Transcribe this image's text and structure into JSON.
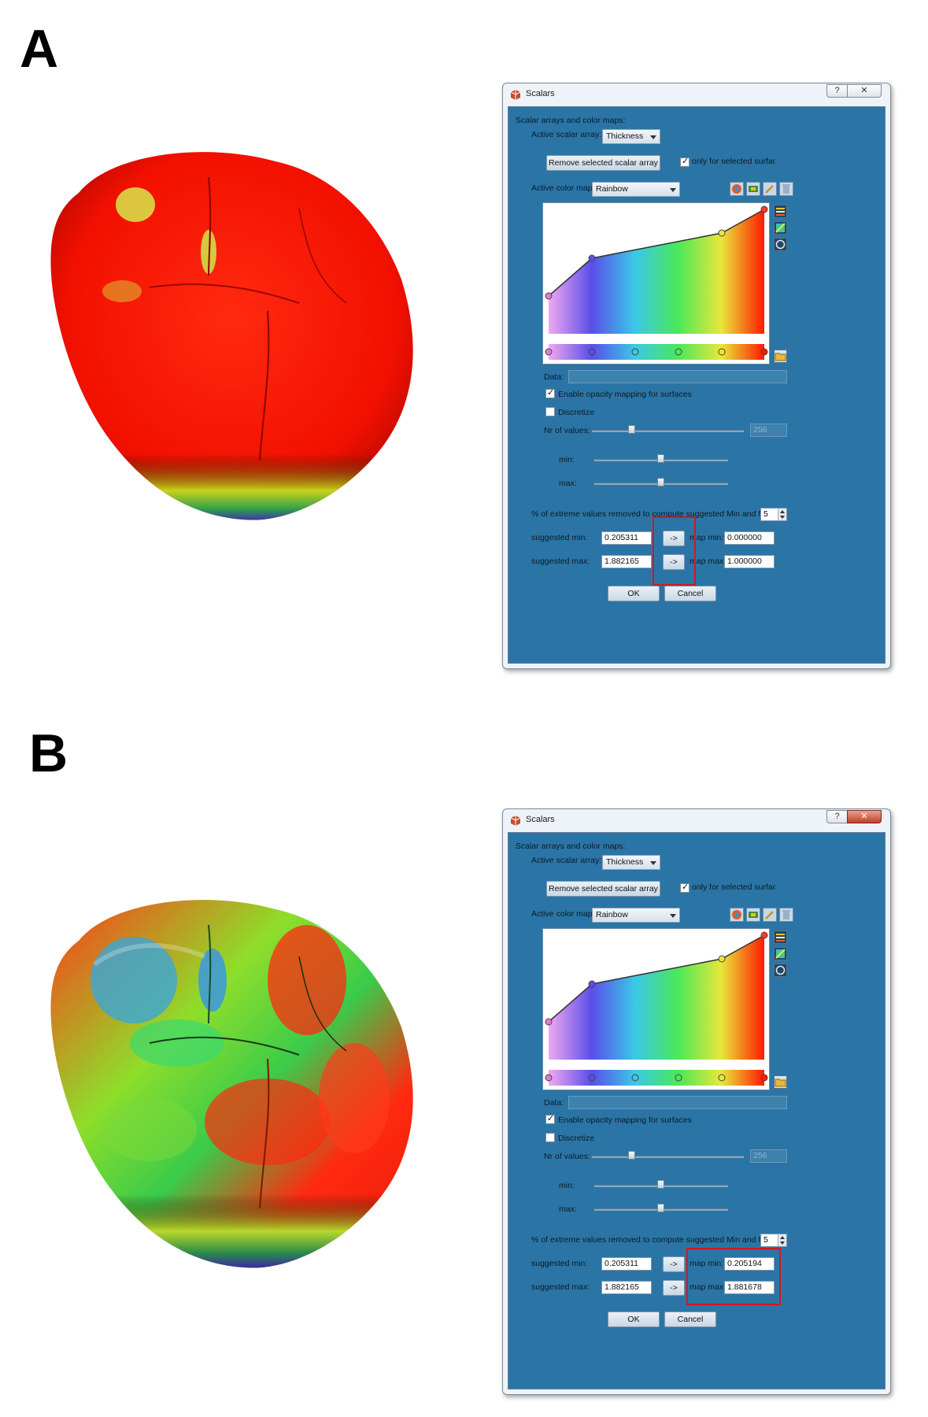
{
  "panels": [
    {
      "letter": "A",
      "dialog": {
        "title": "Scalars",
        "help_glyph": "?",
        "close_glyph": "✕",
        "section_title": "Scalar arrays and color maps:",
        "active_scalar_label": "Active scalar array:",
        "active_scalar_value": "Thickness",
        "remove_button": "Remove selected scalar array",
        "only_selected_label": "only for selected surfaces",
        "only_selected_checked": true,
        "color_map_label": "Active color map:",
        "color_map_value": "Rainbow",
        "data_label": "Data:",
        "data_value": "",
        "opacity_label": "Enable opacity mapping for surfaces",
        "opacity_checked": true,
        "discretize_label": "Discretize",
        "discretize_checked": false,
        "nr_values_label": "Nr of values:",
        "nr_values_value": "256",
        "min_label": "min:",
        "max_label": "max:",
        "extreme_label": "% of extreme values removed to compute suggested Min and Max:",
        "extreme_value": "5",
        "suggested_min_label": "suggested min:",
        "suggested_min_value": "0.205311",
        "suggested_max_label": "suggested max:",
        "suggested_max_value": "1.882165",
        "arrow_button": "->",
        "map_min_label": "map min:",
        "map_min_value": "0.000000",
        "map_max_label": "map max:",
        "map_max_value": "1.000000",
        "ok_button": "OK",
        "cancel_button": "Cancel"
      }
    },
    {
      "letter": "B",
      "dialog": {
        "title": "Scalars",
        "help_glyph": "?",
        "close_glyph": "✕",
        "section_title": "Scalar arrays and color maps:",
        "active_scalar_label": "Active scalar array:",
        "active_scalar_value": "Thickness",
        "remove_button": "Remove selected scalar array",
        "only_selected_label": "only for selected surfaces",
        "only_selected_checked": true,
        "color_map_label": "Active color map:",
        "color_map_value": "Rainbow",
        "data_label": "Data:",
        "data_value": "",
        "opacity_label": "Enable opacity mapping for surfaces",
        "opacity_checked": true,
        "discretize_label": "Discretize",
        "discretize_checked": false,
        "nr_values_label": "Nr of values:",
        "nr_values_value": "256",
        "min_label": "min:",
        "max_label": "max:",
        "extreme_label": "% of extreme values removed to compute suggested Min and Max:",
        "extreme_value": "5",
        "suggested_min_label": "suggested min:",
        "suggested_min_value": "0.205311",
        "suggested_max_label": "suggested max:",
        "suggested_max_value": "1.882165",
        "arrow_button": "->",
        "map_min_label": "map min:",
        "map_min_value": "0.205194",
        "map_max_label": "map max:",
        "map_max_value": "1.881678",
        "ok_button": "OK",
        "cancel_button": "Cancel"
      }
    }
  ],
  "colors": {
    "dialog_client": "#2a75a6",
    "highlight_box": "#d8161a",
    "tooth_a_base": "#ff1a00"
  },
  "icons": [
    "scalars-app-icon",
    "help-icon",
    "close-icon",
    "chevron-down-icon",
    "checkbox-icon",
    "color-map-tool-icon",
    "trash-icon",
    "folder-icon",
    "edit-tool-icon"
  ]
}
